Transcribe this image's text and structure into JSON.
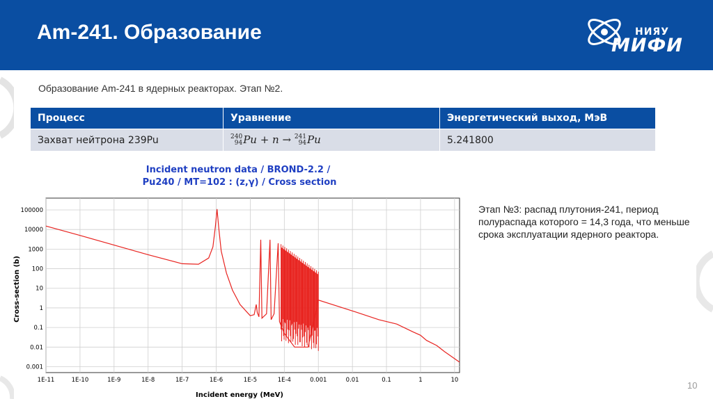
{
  "header": {
    "title": "Am-241. Образование",
    "logo": {
      "top": "НИЯУ",
      "main": "МИФИ"
    }
  },
  "subtitle": "Образование Am-241 в ядерных реакторах. Этап №2.",
  "table": {
    "headers": [
      "Процесс",
      "Уравнение",
      "Энергетический выход, МэВ"
    ],
    "row": {
      "process": "Захват нейтрона 239Pu",
      "equation": {
        "a1": "240",
        "z1": "94",
        "s1": "Pu",
        "mid": " + n → ",
        "a2": "241",
        "z2": "94",
        "s2": "Pu"
      },
      "energy": "5.241800"
    }
  },
  "note": "Этап №3: распад плутония-241, период полураспада которого = 14,3 года, что меньше срока эксплуатации ядерного реактора.",
  "page_number": "10",
  "colors": {
    "header": "#0a4ea2",
    "curve": "#e8231f",
    "chart_title": "#1f3fc2",
    "row_bg": "#d9dde7"
  },
  "chart_data": {
    "type": "line",
    "title": "Incident neutron data / BROND-2.2 /",
    "subtitle": "Pu240 / MT=102 : (z,γ) / Cross section",
    "xlabel": "Incident energy (MeV)",
    "ylabel": "Cross-section (b)",
    "x_scale": "log",
    "y_scale": "log",
    "xlim": [
      1e-11,
      14
    ],
    "ylim": [
      0.0005,
      400000
    ],
    "x_ticks": [
      "1E-11",
      "1E-10",
      "1E-9",
      "1E-8",
      "1E-7",
      "1E-6",
      "1E-5",
      "1E-4",
      "0.001",
      "0.01",
      "0.1",
      "1",
      "10"
    ],
    "y_ticks": [
      "0.001",
      "0.01",
      "0.1",
      "1",
      "10",
      "100",
      "1000",
      "10000",
      "100000"
    ],
    "grid": true,
    "series": [
      {
        "values": [
          [
            1e-11,
            15000
          ],
          [
            1e-10,
            5000
          ],
          [
            1e-09,
            1600
          ],
          [
            1e-08,
            520
          ],
          [
            1e-07,
            180
          ],
          [
            3e-07,
            170
          ],
          [
            6e-07,
            350
          ],
          [
            8e-07,
            1300
          ],
          [
            9.5e-07,
            15000
          ],
          [
            1.056e-06,
            110000
          ],
          [
            1.2e-06,
            10000
          ],
          [
            1.4e-06,
            800
          ],
          [
            2e-06,
            60
          ],
          [
            3e-06,
            8
          ],
          [
            5e-06,
            1.5
          ],
          [
            1e-05,
            0.4
          ],
          [
            1.3e-05,
            0.45
          ],
          [
            1.5e-05,
            1.5
          ],
          [
            1.6e-05,
            0.6
          ],
          [
            1.8e-05,
            0.35
          ],
          [
            2.03e-05,
            3000
          ],
          [
            2.2e-05,
            0.3
          ],
          [
            3e-05,
            0.5
          ],
          [
            3.8e-05,
            3000
          ],
          [
            4.1e-05,
            0.25
          ],
          [
            5e-05,
            0.5
          ],
          [
            6.6e-05,
            2000
          ],
          [
            7.2e-05,
            0.2
          ],
          [
            0.0001,
            0.05
          ],
          [
            0.0002,
            0.01
          ],
          [
            0.0005,
            0.01
          ],
          [
            0.001,
            2.5
          ],
          [
            0.01,
            0.7
          ],
          [
            0.06,
            0.25
          ],
          [
            0.1,
            0.2
          ],
          [
            0.2,
            0.15
          ],
          [
            0.6,
            0.06
          ],
          [
            1,
            0.04
          ],
          [
            1.5,
            0.022
          ],
          [
            3,
            0.012
          ],
          [
            5,
            0.006
          ],
          [
            14,
            0.0017
          ]
        ]
      }
    ]
  }
}
